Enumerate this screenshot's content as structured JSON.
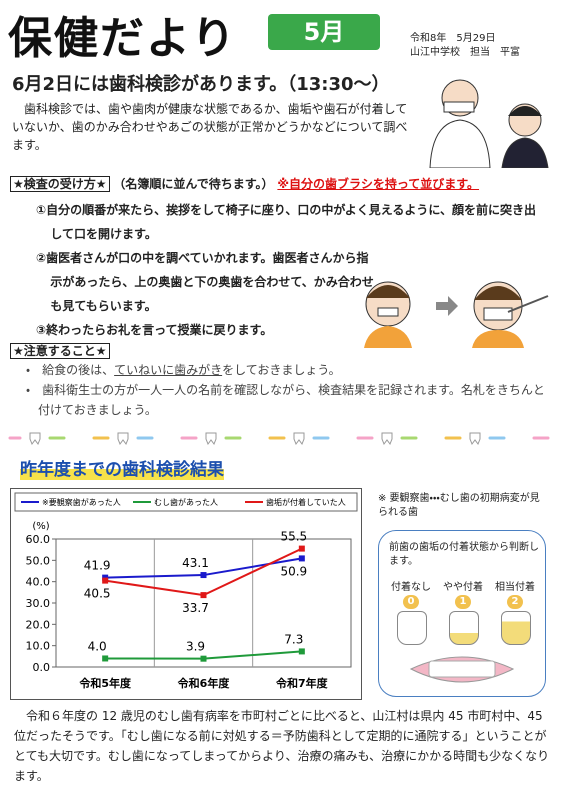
{
  "header": {
    "title": "保健だより",
    "month": "5月",
    "date": "令和8年　5月29日",
    "author": "山江中学校　担当　平富"
  },
  "headline": "6月2日には歯科検診があります。（13:30～）",
  "intro": "歯科検診では、歯や歯肉が健康な状態であるか、歯垢や歯石が付着していないか、歯のかみ合わせやあごの状態が正常かどうかなどについて調べます。",
  "exam": {
    "heading": "★検査の受け方★",
    "note": "（名簿順に並んで待ちます。）",
    "warning": "※自分の歯ブラシを持って並びます。",
    "steps": [
      "①自分の順番が来たら、挨拶をして椅子に座り、口の中がよく見えるように、顔を前に突き出して口を開けます。",
      "②歯医者さんが口の中を調べていかれます。歯医者さんから指示があったら、上の奥歯と下の奥歯を合わせて、かみ合わせも見てもらいます。",
      "③終わったらお礼を言って授業に戻ります。"
    ]
  },
  "cautions": {
    "heading": "★注意すること★",
    "items": [
      [
        "給食の後は、",
        "ていねいに歯みがき",
        "をしておきましょう。"
      ],
      [
        "歯科衛生士の方が一人一人の名前を確認しながら、検査結果を記録されます。名札をきちんと付けておきましょう。"
      ]
    ]
  },
  "chart_data": {
    "type": "line",
    "title": "昨年度までの歯科検診結果",
    "y_label": "(%)",
    "categories": [
      "令和5年度",
      "令和6年度",
      "令和7年度"
    ],
    "series": [
      {
        "name": "※要観察歯があった人",
        "color": "#1a1acc",
        "values": [
          41.9,
          43.1,
          50.9
        ],
        "value_labels": [
          "41.9",
          "43.1",
          "50.9"
        ]
      },
      {
        "name": "むし歯があった人",
        "color": "#1f9a3a",
        "values": [
          4.0,
          3.9,
          7.3
        ],
        "value_labels": [
          "4.0",
          "3.9",
          "7.3"
        ]
      },
      {
        "name": "歯垢が付着していた人",
        "color": "#e01818",
        "values": [
          40.5,
          33.7,
          55.5
        ],
        "value_labels": [
          "40.5",
          "33.7",
          "55.5"
        ]
      }
    ],
    "ylim": [
      0,
      60
    ],
    "yticks": [
      {
        "value": 0,
        "label": "0.0"
      },
      {
        "value": 10,
        "label": "10.0"
      },
      {
        "value": 20,
        "label": "20.0"
      },
      {
        "value": 30,
        "label": "30.0"
      },
      {
        "value": 40,
        "label": "40.0"
      },
      {
        "value": 50,
        "label": "50.0"
      },
      {
        "value": 60,
        "label": "60.0"
      }
    ],
    "grid": false
  },
  "note": {
    "footnote": "※ 要観察歯・・・むし歯の初期病変が見られる歯",
    "box_title": "前歯の歯垢の付着状態から判断します。",
    "levels": [
      {
        "label": "付着なし",
        "score": 0
      },
      {
        "label": "やや付着",
        "score": 1
      },
      {
        "label": "相当付着",
        "score": 2
      }
    ]
  },
  "closing": "令和６年度の 12 歳児のむし歯有病率を市町村ごとに比べると、山江村は県内 45 市町村中、45 位だったそうです。「むし歯になる前に対処する＝予防歯科として定期的に通院する」ということがとても大切です。むし歯になってしまってからより、治療の痛みも、治療にかかる時間も少なくなります。"
}
